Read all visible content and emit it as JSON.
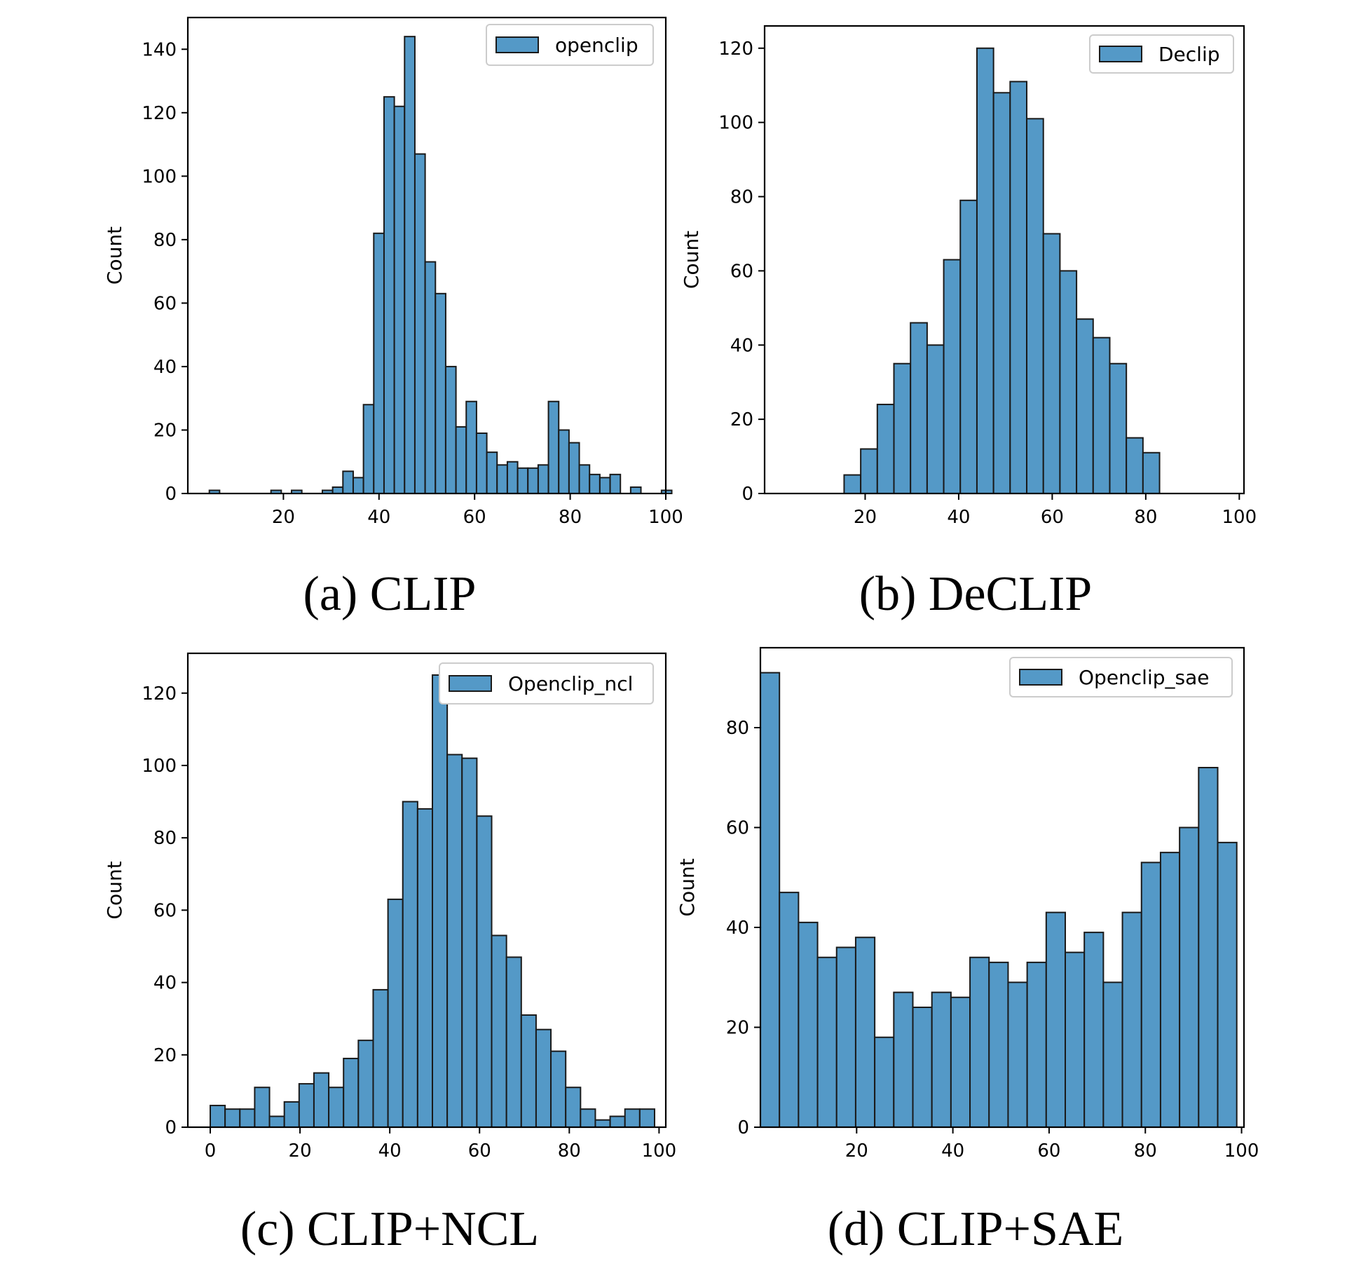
{
  "colors": {
    "bar_fill": "#5499c7",
    "bar_edge": "#1a1a1a"
  },
  "chart_data": [
    {
      "type": "bar",
      "caption": "(a) CLIP",
      "legend": "openclip",
      "ylabel": "Count",
      "xlabel": "",
      "xlim": [
        0,
        100
      ],
      "ylim": [
        0,
        150
      ],
      "xticks": [
        20,
        40,
        60,
        80,
        100
      ],
      "xtick_labels": [
        "20",
        "40",
        "60",
        "80",
        "100"
      ],
      "yticks": [
        0,
        20,
        40,
        60,
        80,
        100,
        120,
        140
      ],
      "ytick_labels": [
        "0",
        "20",
        "40",
        "60",
        "80",
        "100",
        "120",
        "140"
      ],
      "bin_start": 4.5,
      "bin_width": 2.15,
      "values": [
        1,
        0,
        0,
        0,
        0,
        0,
        1,
        0,
        1,
        0,
        0,
        1,
        2,
        7,
        5,
        28,
        82,
        125,
        122,
        144,
        107,
        73,
        63,
        40,
        21,
        29,
        19,
        13,
        9,
        10,
        8,
        8,
        9,
        29,
        20,
        16,
        9,
        6,
        5,
        6,
        0,
        2,
        0,
        0,
        1
      ]
    },
    {
      "type": "bar",
      "caption": "(b) DeCLIP",
      "legend": "Declip",
      "ylabel": "Count",
      "xlabel": "",
      "xlim": [
        -1.5,
        101
      ],
      "ylim": [
        0,
        126
      ],
      "xticks": [
        20,
        40,
        60,
        80,
        100
      ],
      "xtick_labels": [
        "20",
        "40",
        "60",
        "80",
        "100"
      ],
      "yticks": [
        0,
        20,
        40,
        60,
        80,
        100,
        120
      ],
      "ytick_labels": [
        "0",
        "20",
        "40",
        "60",
        "80",
        "100",
        "120"
      ],
      "bin_start": 15.5,
      "bin_width": 3.55,
      "values": [
        5,
        12,
        24,
        35,
        46,
        40,
        63,
        79,
        120,
        108,
        111,
        101,
        70,
        60,
        47,
        42,
        35,
        15,
        11
      ]
    },
    {
      "type": "bar",
      "caption": "(c) CLIP+NCL",
      "legend": "Openclip_ncl",
      "ylabel": "Count",
      "xlabel": "",
      "xlim": [
        -5,
        101.5
      ],
      "ylim": [
        0,
        131
      ],
      "xticks": [
        0,
        20,
        40,
        60,
        80,
        100
      ],
      "xtick_labels": [
        "0",
        "20",
        "40",
        "60",
        "80",
        "100"
      ],
      "yticks": [
        0,
        20,
        40,
        60,
        80,
        100,
        120
      ],
      "ytick_labels": [
        "0",
        "20",
        "40",
        "60",
        "80",
        "100",
        "120"
      ],
      "bin_start": 0,
      "bin_width": 3.3,
      "values": [
        6,
        5,
        5,
        11,
        3,
        7,
        12,
        15,
        11,
        19,
        24,
        38,
        63,
        90,
        88,
        125,
        103,
        102,
        86,
        53,
        47,
        31,
        27,
        21,
        11,
        5,
        2,
        3,
        5,
        5
      ]
    },
    {
      "type": "bar",
      "caption": "(d) CLIP+SAE",
      "legend": "Openclip_sae",
      "ylabel": "Count",
      "xlabel": "",
      "xlim": [
        0,
        100.5
      ],
      "ylim": [
        0,
        96
      ],
      "xticks": [
        20,
        40,
        60,
        80,
        100
      ],
      "xtick_labels": [
        "20",
        "40",
        "60",
        "80",
        "100"
      ],
      "yticks": [
        0,
        20,
        40,
        60,
        80
      ],
      "ytick_labels": [
        "0",
        "20",
        "40",
        "60",
        "80"
      ],
      "bin_start": 0,
      "bin_width": 3.96,
      "values": [
        91,
        47,
        41,
        34,
        36,
        38,
        18,
        27,
        24,
        27,
        26,
        34,
        33,
        29,
        33,
        43,
        35,
        39,
        29,
        43,
        53,
        55,
        60,
        72,
        57
      ]
    }
  ]
}
